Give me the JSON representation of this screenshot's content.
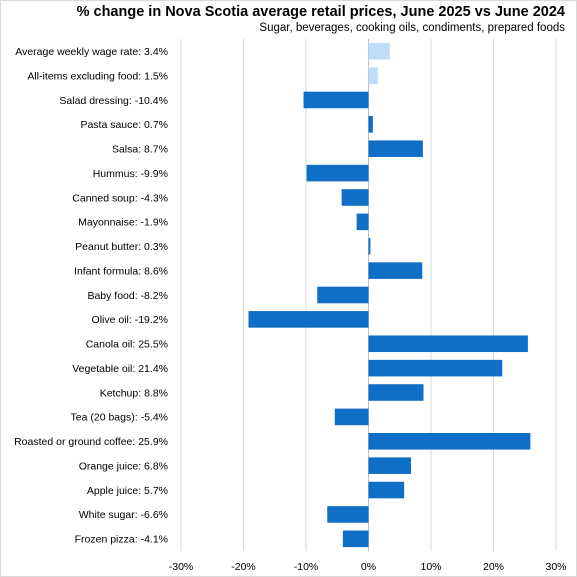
{
  "chart_data": {
    "type": "bar",
    "orientation": "horizontal",
    "title": "% change in Nova Scotia average retail prices, June 2025 vs June 2024",
    "subtitle": "Sugar, beverages,  cooking oils, condiments, prepared foods",
    "xlabel": "",
    "ylabel": "",
    "xlim": [
      -30,
      30
    ],
    "xticks": [
      -30,
      -20,
      -10,
      0,
      10,
      20,
      30
    ],
    "xtick_labels": [
      "-30%",
      "-20%",
      "-10%",
      "0%",
      "10%",
      "20%",
      "30%"
    ],
    "grid": "vertical",
    "legend": "none",
    "categories": [
      "Average weekly wage rate: 3.4%",
      "All-items excluding food: 1.5%",
      "Salad dressing: -10.4%",
      "Pasta sauce: 0.7%",
      "Salsa: 8.7%",
      "Hummus: -9.9%",
      "Canned soup: -4.3%",
      "Mayonnaise: -1.9%",
      "Peanut butter: 0.3%",
      "Infant formula: 8.6%",
      "Baby food: -8.2%",
      "Olive oil: -19.2%",
      "Canola oil: 25.5%",
      "Vegetable oil: 21.4%",
      "Ketchup: 8.8%",
      "Tea (20 bags): -5.4%",
      "Roasted or ground coffee: 25.9%",
      "Orange juice: 6.8%",
      "Apple juice: 5.7%",
      "White sugar: -6.6%",
      "Frozen pizza: -4.1%"
    ],
    "values": [
      3.4,
      1.5,
      -10.4,
      0.7,
      8.7,
      -9.9,
      -4.3,
      -1.9,
      0.3,
      8.6,
      -8.2,
      -19.2,
      25.5,
      21.4,
      8.8,
      -5.4,
      25.9,
      6.8,
      5.7,
      -6.6,
      -4.1
    ],
    "highlight": [
      true,
      true,
      false,
      false,
      false,
      false,
      false,
      false,
      false,
      false,
      false,
      false,
      false,
      false,
      false,
      false,
      false,
      false,
      false,
      false,
      false
    ],
    "colors": {
      "bar": "#0F6FC6",
      "highlight": "#BDDDF9",
      "grid": "#d9d9d9",
      "axis": "#bfbfbf"
    }
  }
}
